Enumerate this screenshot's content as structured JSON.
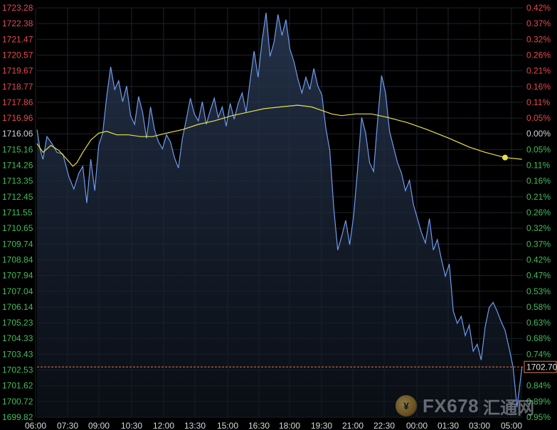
{
  "chart_data": {
    "type": "line",
    "title": "",
    "price_ticks": [
      "1723.28",
      "1722.38",
      "1721.47",
      "1720.57",
      "1719.67",
      "1718.77",
      "1717.86",
      "1716.96",
      "1716.06",
      "1715.16",
      "1714.26",
      "1713.35",
      "1712.45",
      "1711.55",
      "1710.65",
      "1709.74",
      "1708.84",
      "1707.94",
      "1707.04",
      "1706.14",
      "1705.23",
      "1704.33",
      "1703.43",
      "1702.53",
      "1701.62",
      "1700.72",
      "1699.82"
    ],
    "pct_ticks": [
      "0.42%",
      "0.37%",
      "0.32%",
      "0.26%",
      "0.21%",
      "0.16%",
      "0.11%",
      "0.05%",
      "0.00%",
      "0.05%",
      "0.11%",
      "0.16%",
      "0.21%",
      "0.26%",
      "0.32%",
      "0.37%",
      "0.42%",
      "0.47%",
      "0.53%",
      "0.58%",
      "0.63%",
      "0.68%",
      "0.74%",
      "0.79%",
      "0.84%",
      "0.89%",
      "0.95%"
    ],
    "time_ticks": [
      "06:00",
      "07:30",
      "09:00",
      "10:30",
      "12:00",
      "13:30",
      "15:00",
      "16:30",
      "18:00",
      "19:30",
      "21:00",
      "22:30",
      "00:00",
      "01:30",
      "03:00",
      "05:00"
    ],
    "ylim": [
      1699.82,
      1723.28
    ],
    "reference_price": 1716.06,
    "last_price": 1702.7,
    "last_price_label": "1702.70",
    "colors": {
      "price_line": "#6f9bef",
      "average_line": "#e6e04a",
      "up_axis": "#e8484e",
      "down_axis": "#3fbf5a",
      "last_price_line": "#e07a3a"
    },
    "series": [
      {
        "points": [
          [
            0,
            1716.3
          ],
          [
            3,
            1715.2
          ],
          [
            6,
            1714.6
          ],
          [
            10,
            1715.9
          ],
          [
            15,
            1715.5
          ],
          [
            20,
            1715.0
          ],
          [
            26,
            1714.9
          ],
          [
            32,
            1713.6
          ],
          [
            37,
            1712.9
          ],
          [
            42,
            1713.8
          ],
          [
            46,
            1714.2
          ],
          [
            50,
            1712.1
          ],
          [
            54,
            1714.6
          ],
          [
            58,
            1712.8
          ],
          [
            62,
            1715.4
          ],
          [
            66,
            1716.1
          ],
          [
            70,
            1718.2
          ],
          [
            74,
            1719.9
          ],
          [
            78,
            1718.6
          ],
          [
            82,
            1719.1
          ],
          [
            86,
            1717.9
          ],
          [
            90,
            1718.8
          ],
          [
            94,
            1717.1
          ],
          [
            98,
            1716.6
          ],
          [
            102,
            1718.2
          ],
          [
            106,
            1717.3
          ],
          [
            110,
            1715.8
          ],
          [
            114,
            1717.6
          ],
          [
            118,
            1716.3
          ],
          [
            122,
            1715.6
          ],
          [
            126,
            1715.2
          ],
          [
            130,
            1716.0
          ],
          [
            134,
            1715.6
          ],
          [
            138,
            1714.7
          ],
          [
            142,
            1714.1
          ],
          [
            146,
            1715.8
          ],
          [
            150,
            1716.9
          ],
          [
            154,
            1718.1
          ],
          [
            158,
            1717.2
          ],
          [
            162,
            1716.8
          ],
          [
            166,
            1717.9
          ],
          [
            170,
            1716.6
          ],
          [
            174,
            1717.4
          ],
          [
            178,
            1718.1
          ],
          [
            182,
            1717.0
          ],
          [
            186,
            1717.6
          ],
          [
            190,
            1716.5
          ],
          [
            194,
            1717.8
          ],
          [
            198,
            1716.9
          ],
          [
            202,
            1717.8
          ],
          [
            206,
            1718.4
          ],
          [
            210,
            1717.3
          ],
          [
            214,
            1719.1
          ],
          [
            218,
            1720.8
          ],
          [
            222,
            1719.3
          ],
          [
            226,
            1721.4
          ],
          [
            230,
            1723.0
          ],
          [
            234,
            1720.5
          ],
          [
            238,
            1721.3
          ],
          [
            242,
            1722.9
          ],
          [
            246,
            1721.7
          ],
          [
            250,
            1722.6
          ],
          [
            254,
            1720.9
          ],
          [
            258,
            1720.2
          ],
          [
            262,
            1719.2
          ],
          [
            266,
            1718.4
          ],
          [
            270,
            1719.3
          ],
          [
            274,
            1718.6
          ],
          [
            278,
            1719.8
          ],
          [
            282,
            1718.8
          ],
          [
            286,
            1718.3
          ],
          [
            290,
            1716.4
          ],
          [
            294,
            1715.1
          ],
          [
            298,
            1711.8
          ],
          [
            302,
            1709.4
          ],
          [
            306,
            1710.2
          ],
          [
            310,
            1711.1
          ],
          [
            314,
            1709.7
          ],
          [
            318,
            1711.4
          ],
          [
            322,
            1714.1
          ],
          [
            326,
            1717.0
          ],
          [
            330,
            1716.1
          ],
          [
            334,
            1714.4
          ],
          [
            338,
            1713.9
          ],
          [
            342,
            1716.8
          ],
          [
            346,
            1719.4
          ],
          [
            350,
            1718.4
          ],
          [
            354,
            1716.2
          ],
          [
            358,
            1715.3
          ],
          [
            362,
            1714.4
          ],
          [
            366,
            1713.8
          ],
          [
            370,
            1712.8
          ],
          [
            374,
            1713.4
          ],
          [
            378,
            1712.0
          ],
          [
            382,
            1711.2
          ],
          [
            386,
            1710.4
          ],
          [
            390,
            1709.8
          ],
          [
            394,
            1711.2
          ],
          [
            398,
            1709.4
          ],
          [
            402,
            1710.0
          ],
          [
            406,
            1708.9
          ],
          [
            410,
            1707.9
          ],
          [
            414,
            1708.6
          ],
          [
            418,
            1705.9
          ],
          [
            422,
            1705.2
          ],
          [
            426,
            1705.6
          ],
          [
            430,
            1704.5
          ],
          [
            434,
            1705.1
          ],
          [
            438,
            1703.6
          ],
          [
            442,
            1704.0
          ],
          [
            446,
            1703.1
          ],
          [
            450,
            1705.0
          ],
          [
            454,
            1706.1
          ],
          [
            458,
            1706.4
          ],
          [
            462,
            1705.9
          ],
          [
            466,
            1705.3
          ],
          [
            470,
            1704.8
          ],
          [
            474,
            1703.8
          ],
          [
            478,
            1702.7
          ],
          [
            482,
            1700.4
          ],
          [
            484,
            1701.3
          ],
          [
            487,
            1702.7
          ]
        ]
      },
      {
        "points": [
          [
            0,
            1715.5
          ],
          [
            6,
            1715.0
          ],
          [
            14,
            1715.4
          ],
          [
            22,
            1715.1
          ],
          [
            30,
            1714.6
          ],
          [
            36,
            1714.2
          ],
          [
            40,
            1714.4
          ],
          [
            46,
            1715.0
          ],
          [
            54,
            1715.7
          ],
          [
            62,
            1716.1
          ],
          [
            70,
            1716.2
          ],
          [
            80,
            1716.0
          ],
          [
            92,
            1716.0
          ],
          [
            104,
            1715.9
          ],
          [
            116,
            1715.9
          ],
          [
            130,
            1716.1
          ],
          [
            146,
            1716.3
          ],
          [
            162,
            1716.6
          ],
          [
            178,
            1716.8
          ],
          [
            196,
            1717.1
          ],
          [
            212,
            1717.3
          ],
          [
            228,
            1717.5
          ],
          [
            244,
            1717.6
          ],
          [
            262,
            1717.7
          ],
          [
            276,
            1717.6
          ],
          [
            286,
            1717.4
          ],
          [
            296,
            1717.2
          ],
          [
            306,
            1717.1
          ],
          [
            320,
            1717.2
          ],
          [
            336,
            1717.2
          ],
          [
            352,
            1717.0
          ],
          [
            372,
            1716.7
          ],
          [
            392,
            1716.3
          ],
          [
            414,
            1715.8
          ],
          [
            434,
            1715.3
          ],
          [
            450,
            1715.0
          ],
          [
            470,
            1714.7
          ],
          [
            487,
            1714.6
          ]
        ]
      }
    ]
  },
  "watermark": {
    "brand": "FX678",
    "suffix": "汇通网"
  }
}
